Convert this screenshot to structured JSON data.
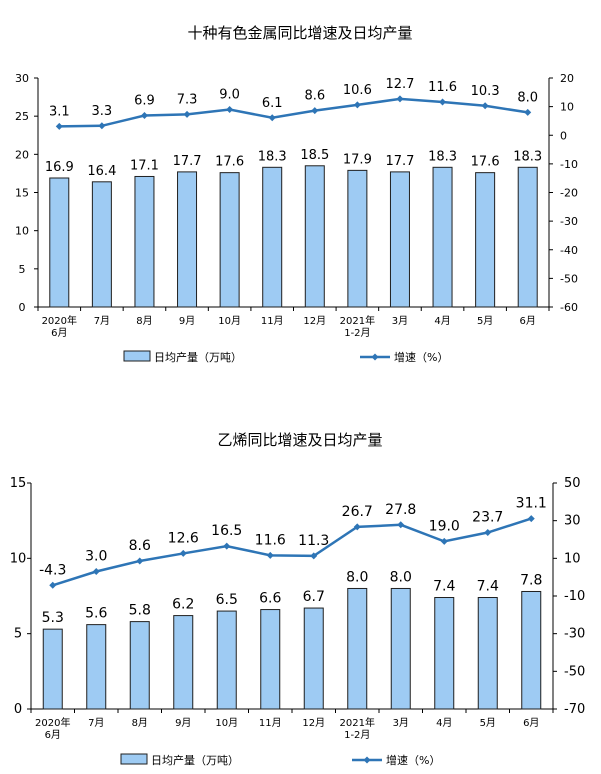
{
  "chart_data": [
    {
      "type": "bar",
      "title": "十种有色金属同比增速及日均产量",
      "categories": [
        [
          "2020年",
          "6月"
        ],
        [
          "7月"
        ],
        [
          "8月"
        ],
        [
          "9月"
        ],
        [
          "10月"
        ],
        [
          "11月"
        ],
        [
          "12月"
        ],
        [
          "2021年",
          "1-2月"
        ],
        [
          "3月"
        ],
        [
          "4月"
        ],
        [
          "5月"
        ],
        [
          "6月"
        ]
      ],
      "series": [
        {
          "name": "日均产量（万吨）",
          "kind": "bar",
          "axis": "left",
          "values": [
            16.9,
            16.4,
            17.1,
            17.7,
            17.6,
            18.3,
            18.5,
            17.9,
            17.7,
            18.3,
            17.6,
            18.3
          ],
          "labels": [
            "16.9",
            "16.4",
            "17.1",
            "17.7",
            "17.6",
            "18.3",
            "18.5",
            "17.9",
            "17.7",
            "18.3",
            "17.6",
            "18.3"
          ]
        },
        {
          "name": "增速（%）",
          "kind": "line",
          "axis": "right",
          "values": [
            3.1,
            3.3,
            6.9,
            7.3,
            9.0,
            6.1,
            8.6,
            10.6,
            12.7,
            11.6,
            10.3,
            8.0
          ],
          "labels": [
            "3.1",
            "3.3",
            "6.9",
            "7.3",
            "9.0",
            "6.1",
            "8.6",
            "10.6",
            "12.7",
            "11.6",
            "10.3",
            "8.0"
          ]
        }
      ],
      "ylim_left": [
        0,
        30
      ],
      "yticks_left": [
        "0",
        "5",
        "10",
        "15",
        "20",
        "25",
        "30"
      ],
      "ylim_right": [
        -60,
        20
      ],
      "yticks_right": [
        "-60",
        "-50",
        "-40",
        "-30",
        "-20",
        "-10",
        "0",
        "10",
        "20"
      ],
      "grid": false,
      "legend_position": "bottom",
      "colors": {
        "bar_fill": "#9ecbf3",
        "bar_stroke": "#1f1f1f",
        "line": "#2e75b6"
      }
    },
    {
      "type": "bar",
      "title": "乙烯同比增速及日均产量",
      "categories": [
        [
          "2020年",
          "6月"
        ],
        [
          "7月"
        ],
        [
          "8月"
        ],
        [
          "9月"
        ],
        [
          "10月"
        ],
        [
          "11月"
        ],
        [
          "12月"
        ],
        [
          "2021年",
          "1-2月"
        ],
        [
          "3月"
        ],
        [
          "4月"
        ],
        [
          "5月"
        ],
        [
          "6月"
        ]
      ],
      "series": [
        {
          "name": "日均产量（万吨）",
          "kind": "bar",
          "axis": "left",
          "values": [
            5.3,
            5.6,
            5.8,
            6.2,
            6.5,
            6.6,
            6.7,
            8.0,
            8.0,
            7.4,
            7.4,
            7.8
          ],
          "labels": [
            "5.3",
            "5.6",
            "5.8",
            "6.2",
            "6.5",
            "6.6",
            "6.7",
            "8.0",
            "8.0",
            "7.4",
            "7.4",
            "7.8"
          ]
        },
        {
          "name": "增速（%）",
          "kind": "line",
          "axis": "right",
          "values": [
            -4.3,
            3.0,
            8.6,
            12.6,
            16.5,
            11.6,
            11.3,
            26.7,
            27.8,
            19.0,
            23.7,
            31.1
          ],
          "labels": [
            "-4.3",
            "3.0",
            "8.6",
            "12.6",
            "16.5",
            "11.6",
            "11.3",
            "26.7",
            "27.8",
            "19.0",
            "23.7",
            "31.1"
          ]
        }
      ],
      "ylim_left": [
        0,
        15
      ],
      "yticks_left": [
        "0",
        "5",
        "10",
        "15"
      ],
      "ylim_right": [
        -70,
        50
      ],
      "yticks_right": [
        "-70",
        "-50",
        "-30",
        "-10",
        "10",
        "30",
        "50"
      ],
      "grid": false,
      "legend_position": "bottom",
      "colors": {
        "bar_fill": "#9ecbf3",
        "bar_stroke": "#1f1f1f",
        "line": "#2e75b6"
      }
    }
  ]
}
